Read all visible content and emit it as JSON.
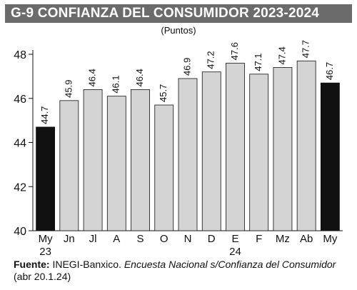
{
  "chart_data": {
    "type": "bar",
    "title": "G-9  CONFIANZA DEL CONSUMIDOR 2023-2024",
    "subtitle": "(Puntos)",
    "categories": [
      "My",
      "Jn",
      "Jl",
      "A",
      "S",
      "O",
      "N",
      "D",
      "E",
      "F",
      "Mz",
      "Ab",
      "My"
    ],
    "category_sublabels": [
      "23",
      "",
      "",
      "",
      "",
      "",
      "",
      "",
      "24",
      "",
      "",
      "",
      ""
    ],
    "values": [
      44.7,
      45.9,
      46.4,
      46.1,
      46.4,
      45.7,
      46.9,
      47.2,
      47.6,
      47.1,
      47.4,
      47.7,
      46.7
    ],
    "value_labels": [
      "44.7",
      "45.9",
      "46.4",
      "46.1",
      "46.4",
      "45.7",
      "46.9",
      "47.2",
      "47.6",
      "47.1",
      "47.4",
      "47.7",
      "46.7"
    ],
    "highlighted": [
      true,
      false,
      false,
      false,
      false,
      false,
      false,
      false,
      false,
      false,
      false,
      false,
      true
    ],
    "ylim": [
      40,
      48
    ],
    "yticks": [
      "40",
      "42",
      "44",
      "46",
      "48"
    ],
    "xlabel": "",
    "ylabel": "",
    "grid": false,
    "colors": {
      "normal": "#d4d4d4",
      "highlight": "#111111",
      "title_bg": "#6b6b6b"
    }
  },
  "source": {
    "label": "Fuente:",
    "text": "INEGI-Banxico.",
    "italic": "Encuesta Nacional s/Confianza del Consumidor",
    "date": "(abr 20.1.24)"
  }
}
